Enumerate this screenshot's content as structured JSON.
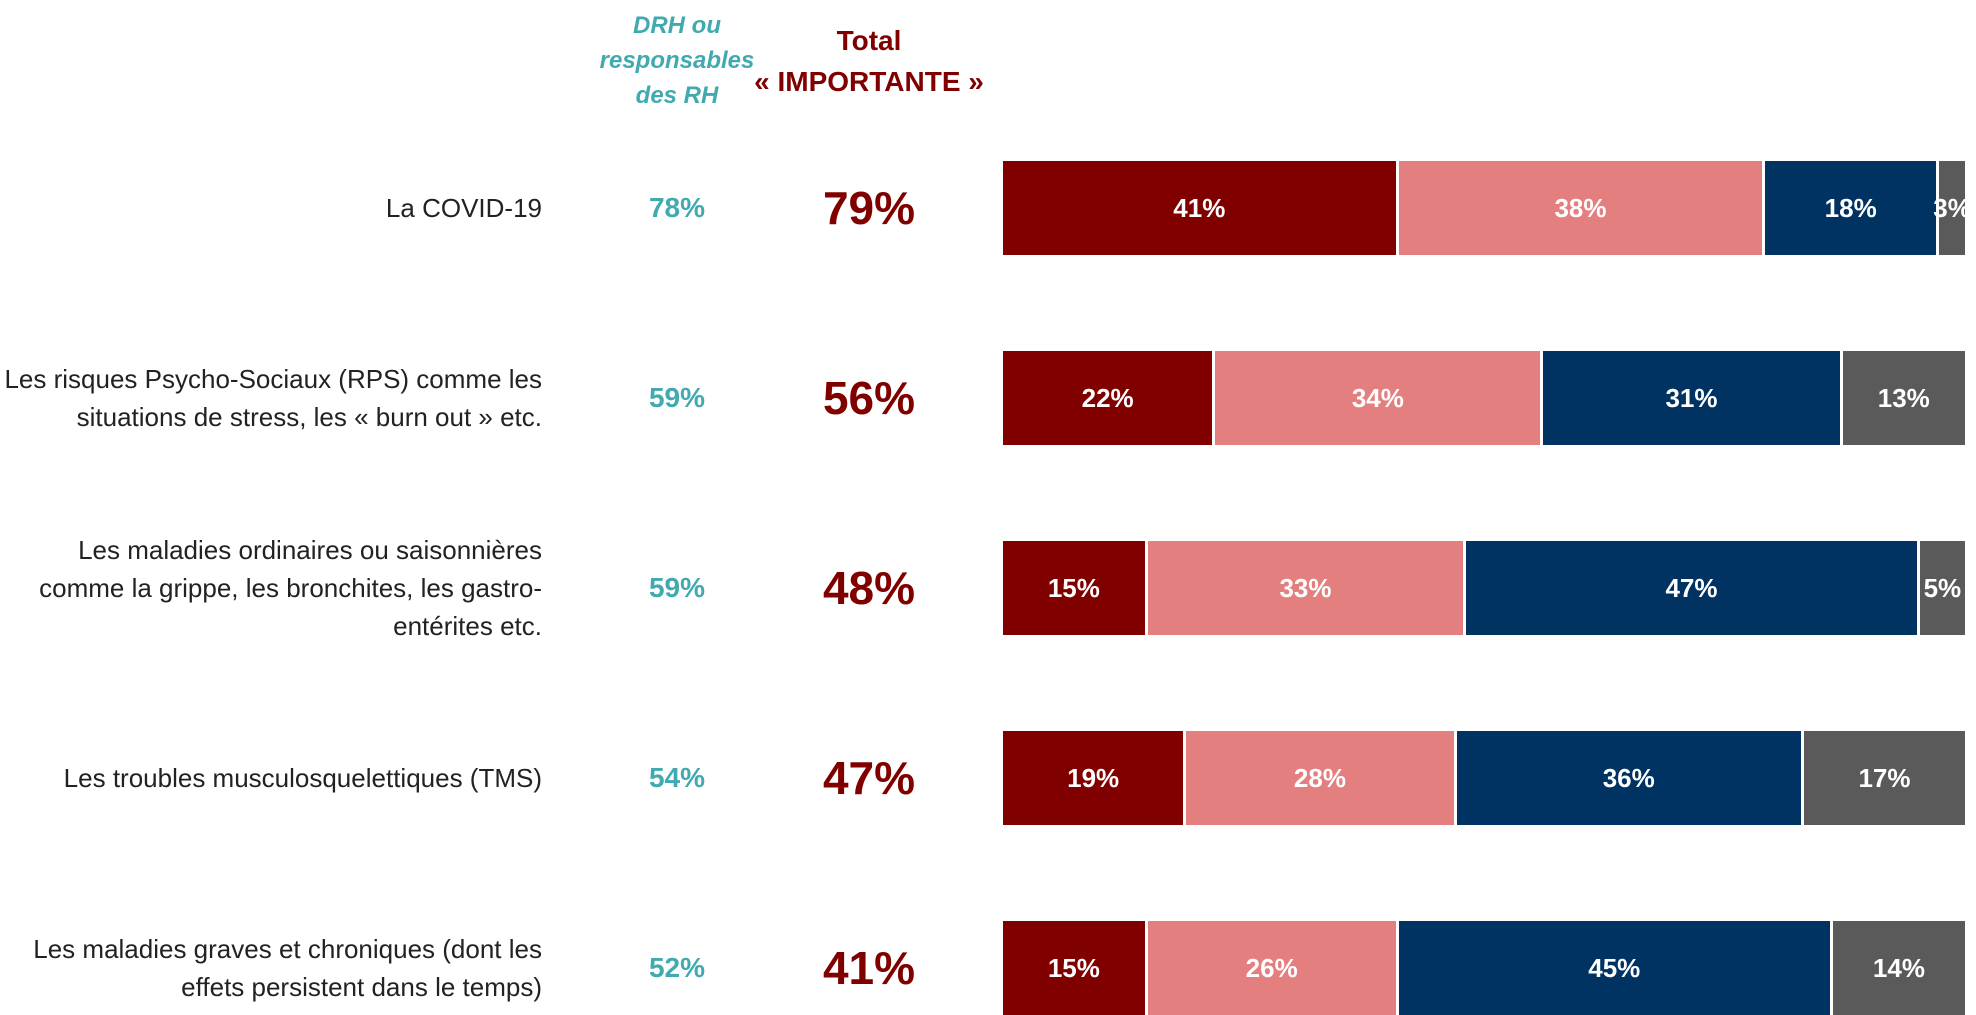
{
  "chart_data": {
    "type": "stacked_bar",
    "categories": [
      "La COVID-19",
      "Les risques Psycho-Sociaux (RPS) comme les situations de stress, les « burn out » etc.",
      "Les maladies ordinaires ou saisonnières comme la grippe, les bronchites, les gastro-entérites etc.",
      "Les troubles musculosquelettiques (TMS)",
      "Les maladies graves et chroniques (dont les effets persistent dans le temps)"
    ],
    "xlim": [
      0,
      100
    ],
    "series": [
      {
        "color": "#800000",
        "values": [
          41,
          22,
          15,
          19,
          15
        ],
        "value_labels": [
          "41%",
          "22%",
          "15%",
          "19%",
          "15%"
        ]
      },
      {
        "color": "#e47f80",
        "values": [
          38,
          34,
          33,
          28,
          26
        ],
        "value_labels": [
          "38%",
          "34%",
          "33%",
          "28%",
          "26%"
        ]
      },
      {
        "color": "#003262",
        "values": [
          18,
          31,
          47,
          36,
          45
        ],
        "value_labels": [
          "18%",
          "31%",
          "47%",
          "36%",
          "45%"
        ]
      },
      {
        "color": "#5a5a5a",
        "values": [
          3,
          13,
          5,
          17,
          14
        ],
        "value_labels": [
          "3%",
          "13%",
          "5%",
          "17%",
          "14%"
        ]
      }
    ],
    "columns": [
      {
        "header": "DRH ou responsables des RH",
        "color": "#40aab0",
        "values": [
          78,
          59,
          59,
          54,
          52
        ],
        "value_labels": [
          "78%",
          "59%",
          "59%",
          "54%",
          "52%"
        ]
      },
      {
        "header": "Total « IMPORTANTE »",
        "color": "#800000",
        "values": [
          79,
          56,
          48,
          47,
          41
        ],
        "value_labels": [
          "79%",
          "56%",
          "48%",
          "47%",
          "41%"
        ]
      }
    ]
  }
}
